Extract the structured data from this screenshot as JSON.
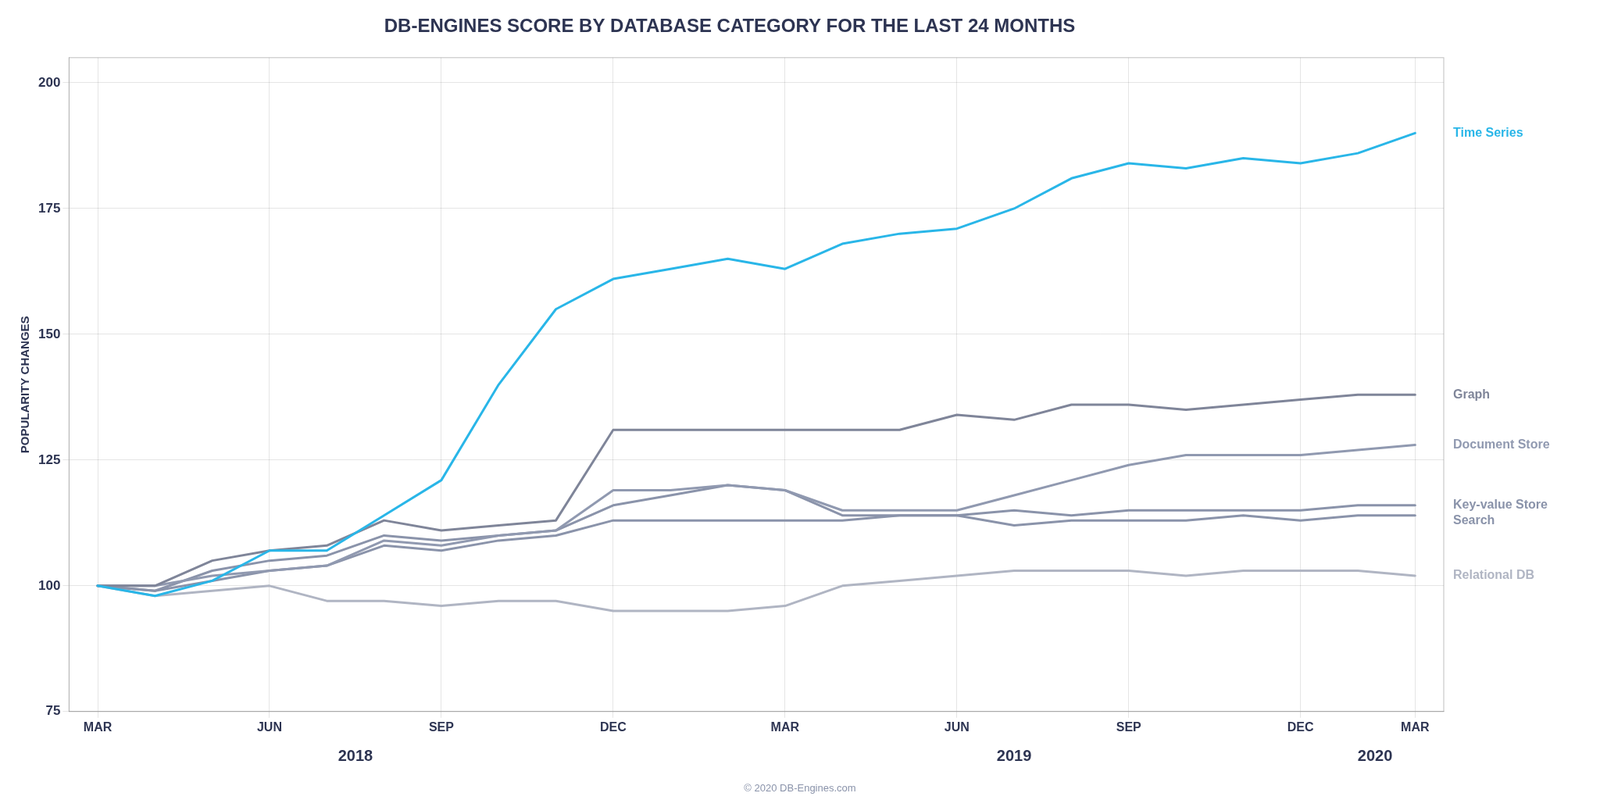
{
  "chart_data": {
    "type": "line",
    "title": "DB-ENGINES SCORE BY DATABASE CATEGORY FOR THE LAST 24 MONTHS",
    "y_label": "POPULARITY CHANGES",
    "footer": "© 2020 DB-Engines.com",
    "categories": [
      "MAR",
      null,
      null,
      "JUN",
      null,
      null,
      "SEP",
      null,
      null,
      "DEC",
      null,
      null,
      "MAR",
      null,
      null,
      "JUN",
      null,
      null,
      "SEP",
      null,
      null,
      "DEC",
      null,
      "MAR"
    ],
    "annotations": [
      {
        "text": "2018",
        "x": 4.5
      },
      {
        "text": "2019",
        "x": 16.0
      },
      {
        "text": "2020",
        "x": 22.3
      }
    ],
    "series": [
      {
        "name": "Time Series",
        "color": "#29b6e8",
        "values": [
          100,
          98,
          101,
          107,
          107,
          114,
          121,
          140,
          155,
          161,
          163,
          165,
          163,
          168,
          170,
          171,
          175,
          181,
          184,
          183,
          185,
          184,
          186,
          190
        ]
      },
      {
        "name": "Graph",
        "color": "#7f8599",
        "values": [
          100,
          100,
          105,
          107,
          108,
          113,
          111,
          112,
          113,
          131,
          131,
          131,
          131,
          131,
          131,
          134,
          133,
          136,
          136,
          135,
          136,
          137,
          138,
          138
        ]
      },
      {
        "name": "Document Store",
        "color": "#9099b0",
        "values": [
          100,
          100,
          102,
          103,
          104,
          109,
          108,
          110,
          111,
          119,
          119,
          120,
          119,
          115,
          115,
          115,
          118,
          121,
          124,
          126,
          126,
          126,
          127,
          128
        ]
      },
      {
        "name": "Key-value Store",
        "color": "#8a93aa",
        "values": [
          100,
          99,
          103,
          105,
          106,
          110,
          109,
          110,
          111,
          116,
          118,
          120,
          119,
          114,
          114,
          114,
          115,
          114,
          115,
          115,
          115,
          115,
          116,
          116
        ]
      },
      {
        "name": "Search",
        "color": "#8a93aa",
        "values": [
          100,
          99,
          101,
          103,
          104,
          108,
          107,
          109,
          110,
          113,
          113,
          113,
          113,
          113,
          114,
          114,
          112,
          113,
          113,
          113,
          114,
          113,
          114,
          114
        ]
      },
      {
        "name": "Relational DB",
        "color": "#b0b5c3",
        "values": [
          100,
          98,
          99,
          100,
          97,
          97,
          96,
          97,
          97,
          95,
          95,
          95,
          96,
          100,
          101,
          102,
          103,
          103,
          103,
          102,
          103,
          103,
          103,
          102
        ]
      }
    ],
    "ylim": [
      75,
      205
    ],
    "yticks": [
      75,
      100,
      125,
      150,
      175,
      200
    ],
    "grid": true
  }
}
